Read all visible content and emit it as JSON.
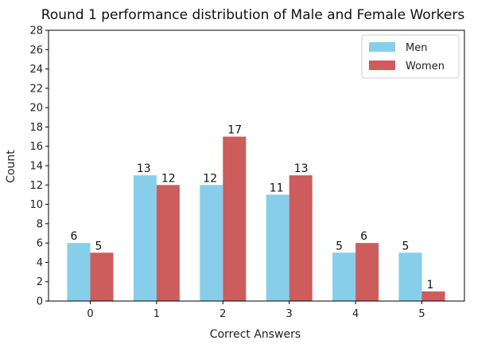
{
  "chart_data": {
    "type": "bar",
    "title": "Round 1 performance distribution of Male and Female Workers",
    "xlabel": "Correct Answers",
    "ylabel": "Count",
    "categories": [
      "0",
      "1",
      "2",
      "3",
      "4",
      "5"
    ],
    "ylim": [
      0,
      28
    ],
    "yticks": [
      0,
      2,
      4,
      6,
      8,
      10,
      12,
      14,
      16,
      18,
      20,
      22,
      24,
      26,
      28
    ],
    "grid": false,
    "legend_position": "top-right",
    "series": [
      {
        "name": "Men",
        "color": "#87ceeb",
        "values": [
          6,
          13,
          12,
          11,
          5,
          5
        ]
      },
      {
        "name": "Women",
        "color": "#cd5c5c",
        "values": [
          5,
          12,
          17,
          13,
          6,
          1
        ]
      }
    ]
  }
}
